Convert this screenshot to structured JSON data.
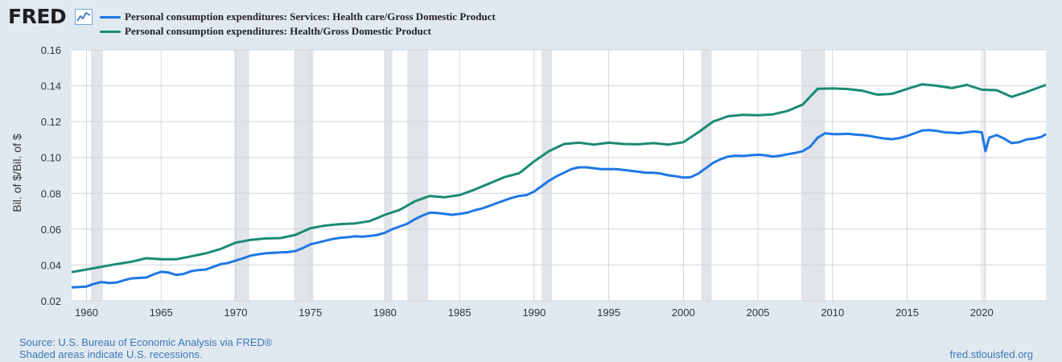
{
  "header": {
    "logo_text": "FRED",
    "logo_icon": "line-chart-icon"
  },
  "legend": [
    {
      "label": "Personal consumption expenditures: Services: Health care/Gross Domestic Product",
      "color": "#1f77e6"
    },
    {
      "label": "Personal consumption expenditures: Health/Gross Domestic Product",
      "color": "#1b8a74"
    }
  ],
  "footer": {
    "source": "Source: U.S. Bureau of Economic Analysis via FRED®",
    "recessions_note": "Shaded areas indicate U.S. recessions.",
    "url": "fred.stlouisfed.org"
  },
  "chart_data": {
    "type": "line",
    "title": "",
    "xlabel": "",
    "ylabel": "Bil. of $/Bil. of $",
    "xlim": [
      1959.0,
      2024.3
    ],
    "ylim": [
      0.02,
      0.16
    ],
    "yticks": [
      0.02,
      0.04,
      0.06,
      0.08,
      0.1,
      0.12,
      0.14,
      0.16
    ],
    "ytick_labels": [
      "0.02",
      "0.04",
      "0.06",
      "0.08",
      "0.10",
      "0.12",
      "0.14",
      "0.16"
    ],
    "xticks": [
      1960,
      1965,
      1970,
      1975,
      1980,
      1985,
      1990,
      1995,
      2000,
      2005,
      2010,
      2015,
      2020
    ],
    "xtick_labels": [
      "1960",
      "1965",
      "1970",
      "1975",
      "1980",
      "1985",
      "1990",
      "1995",
      "2000",
      "2005",
      "2010",
      "2015",
      "2020"
    ],
    "grid": true,
    "recessions": [
      [
        1960.3,
        1961.1
      ],
      [
        1969.9,
        1970.9
      ],
      [
        1973.9,
        1975.2
      ],
      [
        1980.0,
        1980.5
      ],
      [
        1981.5,
        1982.9
      ],
      [
        1990.5,
        1991.2
      ],
      [
        2001.2,
        2001.9
      ],
      [
        2007.9,
        2009.5
      ],
      [
        2020.1,
        2020.3
      ]
    ],
    "series": [
      {
        "name": "Personal consumption expenditures: Services: Health care/Gross Domestic Product",
        "color": "#1f77e6",
        "x": [
          1959.0,
          1960.0,
          1960.5,
          1961.0,
          1961.5,
          1962.0,
          1962.5,
          1963.0,
          1963.5,
          1964.0,
          1964.5,
          1965.0,
          1965.5,
          1966.0,
          1966.5,
          1967.0,
          1967.5,
          1968.0,
          1968.5,
          1969.0,
          1969.5,
          1970.0,
          1970.5,
          1971.0,
          1971.5,
          1972.0,
          1972.5,
          1973.0,
          1973.5,
          1974.0,
          1974.5,
          1975.0,
          1975.5,
          1976.0,
          1976.5,
          1977.0,
          1977.5,
          1978.0,
          1978.5,
          1979.0,
          1979.5,
          1980.0,
          1980.5,
          1981.0,
          1981.5,
          1982.0,
          1982.5,
          1983.0,
          1983.5,
          1984.0,
          1984.5,
          1985.0,
          1985.5,
          1986.0,
          1986.5,
          1987.0,
          1987.5,
          1988.0,
          1988.5,
          1989.0,
          1989.5,
          1990.0,
          1990.5,
          1991.0,
          1991.5,
          1992.0,
          1992.5,
          1993.0,
          1993.5,
          1994.0,
          1994.5,
          1995.0,
          1995.5,
          1996.0,
          1996.5,
          1997.0,
          1997.5,
          1998.0,
          1998.5,
          1999.0,
          1999.5,
          2000.0,
          2000.5,
          2001.0,
          2001.5,
          2002.0,
          2002.5,
          2003.0,
          2003.5,
          2004.0,
          2004.5,
          2005.0,
          2005.5,
          2006.0,
          2006.5,
          2007.0,
          2007.5,
          2008.0,
          2008.5,
          2009.0,
          2009.5,
          2010.0,
          2010.5,
          2011.0,
          2011.5,
          2012.0,
          2012.5,
          2013.0,
          2013.5,
          2014.0,
          2014.5,
          2015.0,
          2015.5,
          2016.0,
          2016.5,
          2017.0,
          2017.5,
          2018.0,
          2018.5,
          2019.0,
          2019.5,
          2020.0,
          2020.25,
          2020.5,
          2021.0,
          2021.5,
          2022.0,
          2022.5,
          2023.0,
          2023.5,
          2024.0,
          2024.3
        ],
        "values": [
          0.0275,
          0.028,
          0.0295,
          0.0305,
          0.03,
          0.0302,
          0.0315,
          0.0325,
          0.0328,
          0.033,
          0.0348,
          0.0362,
          0.0358,
          0.0345,
          0.035,
          0.0365,
          0.0372,
          0.0375,
          0.039,
          0.0405,
          0.0412,
          0.0425,
          0.0438,
          0.0452,
          0.046,
          0.0465,
          0.0468,
          0.047,
          0.0472,
          0.0478,
          0.0495,
          0.0515,
          0.0525,
          0.0535,
          0.0545,
          0.0552,
          0.0555,
          0.056,
          0.0558,
          0.0562,
          0.0568,
          0.058,
          0.06,
          0.0615,
          0.063,
          0.0655,
          0.0675,
          0.0692,
          0.069,
          0.0685,
          0.068,
          0.0685,
          0.0692,
          0.0705,
          0.0715,
          0.073,
          0.0745,
          0.076,
          0.0775,
          0.0785,
          0.079,
          0.081,
          0.084,
          0.087,
          0.0895,
          0.0915,
          0.0935,
          0.0945,
          0.0945,
          0.094,
          0.0935,
          0.0935,
          0.0935,
          0.093,
          0.0925,
          0.092,
          0.0915,
          0.0915,
          0.091,
          0.09,
          0.0895,
          0.0888,
          0.089,
          0.091,
          0.094,
          0.097,
          0.099,
          0.1005,
          0.101,
          0.1008,
          0.1012,
          0.1015,
          0.1012,
          0.1005,
          0.101,
          0.1018,
          0.1025,
          0.1035,
          0.106,
          0.111,
          0.1135,
          0.113,
          0.113,
          0.1132,
          0.1128,
          0.1125,
          0.112,
          0.1112,
          0.1105,
          0.1102,
          0.1108,
          0.112,
          0.1135,
          0.115,
          0.1152,
          0.1148,
          0.114,
          0.1138,
          0.1135,
          0.114,
          0.1145,
          0.114,
          0.1035,
          0.111,
          0.1125,
          0.1105,
          0.108,
          0.1085,
          0.11,
          0.1105,
          0.1115,
          0.113
        ]
      },
      {
        "name": "Personal consumption expenditures: Health/Gross Domestic Product",
        "color": "#1b8a74",
        "x": [
          1959.0,
          1960.0,
          1961.0,
          1962.0,
          1963.0,
          1964.0,
          1965.0,
          1966.0,
          1967.0,
          1968.0,
          1969.0,
          1970.0,
          1971.0,
          1972.0,
          1973.0,
          1974.0,
          1975.0,
          1976.0,
          1977.0,
          1978.0,
          1979.0,
          1980.0,
          1981.0,
          1982.0,
          1983.0,
          1984.0,
          1985.0,
          1986.0,
          1987.0,
          1988.0,
          1989.0,
          1990.0,
          1991.0,
          1992.0,
          1993.0,
          1994.0,
          1995.0,
          1996.0,
          1997.0,
          1998.0,
          1999.0,
          2000.0,
          2001.0,
          2002.0,
          2003.0,
          2004.0,
          2005.0,
          2006.0,
          2007.0,
          2008.0,
          2009.0,
          2010.0,
          2011.0,
          2012.0,
          2013.0,
          2014.0,
          2015.0,
          2016.0,
          2017.0,
          2018.0,
          2019.0,
          2020.0,
          2021.0,
          2022.0,
          2023.0,
          2024.3
        ],
        "values": [
          0.036,
          0.0375,
          0.039,
          0.0405,
          0.0418,
          0.0438,
          0.0432,
          0.0432,
          0.0448,
          0.0465,
          0.049,
          0.0525,
          0.054,
          0.0548,
          0.055,
          0.0568,
          0.0605,
          0.062,
          0.0628,
          0.0632,
          0.0645,
          0.068,
          0.0708,
          0.0755,
          0.0785,
          0.0778,
          0.079,
          0.082,
          0.0855,
          0.089,
          0.0912,
          0.0978,
          0.1035,
          0.1075,
          0.1082,
          0.1072,
          0.1082,
          0.1075,
          0.1073,
          0.108,
          0.1072,
          0.1085,
          0.114,
          0.12,
          0.123,
          0.1238,
          0.1235,
          0.124,
          0.126,
          0.1295,
          0.1383,
          0.1385,
          0.1382,
          0.1372,
          0.135,
          0.1355,
          0.1382,
          0.1408,
          0.14,
          0.1387,
          0.1405,
          0.1378,
          0.1375,
          0.1338,
          0.1365,
          0.1405
        ]
      }
    ]
  }
}
